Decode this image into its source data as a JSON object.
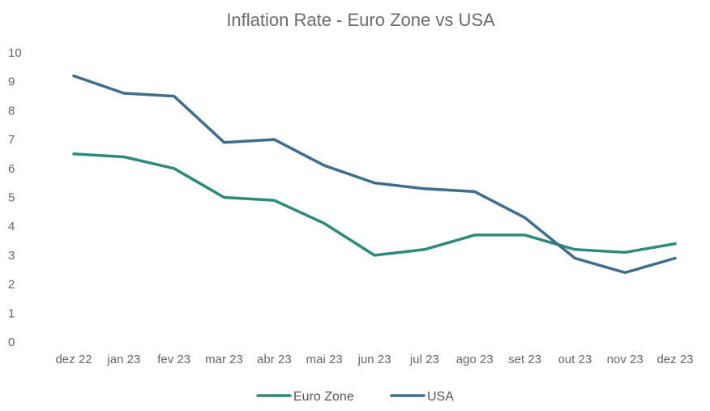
{
  "chart_data": {
    "type": "line",
    "title": "Inflation Rate - Euro Zone vs USA",
    "xlabel": "",
    "ylabel": "",
    "categories": [
      "dez 22",
      "jan 23",
      "fev 23",
      "mar 23",
      "abr 23",
      "mai 23",
      "jun 23",
      "jul 23",
      "ago 23",
      "set 23",
      "out 23",
      "nov 23",
      "dez 23"
    ],
    "ylim": [
      0,
      10
    ],
    "yticks": [
      "0",
      "1",
      "2",
      "3",
      "4",
      "5",
      "6",
      "7",
      "8",
      "9",
      "10"
    ],
    "grid": false,
    "legend_position": "bottom",
    "series": [
      {
        "name": "Euro Zone",
        "color": "#2e8b7a",
        "values": [
          6.5,
          6.4,
          6.0,
          5.0,
          4.9,
          4.1,
          3.0,
          3.2,
          3.7,
          3.7,
          3.2,
          3.1,
          3.4
        ]
      },
      {
        "name": "USA",
        "color": "#3e6e8c",
        "values": [
          9.2,
          8.6,
          8.5,
          6.9,
          7.0,
          6.1,
          5.5,
          5.3,
          5.2,
          4.3,
          2.9,
          2.4,
          2.9
        ]
      }
    ]
  }
}
